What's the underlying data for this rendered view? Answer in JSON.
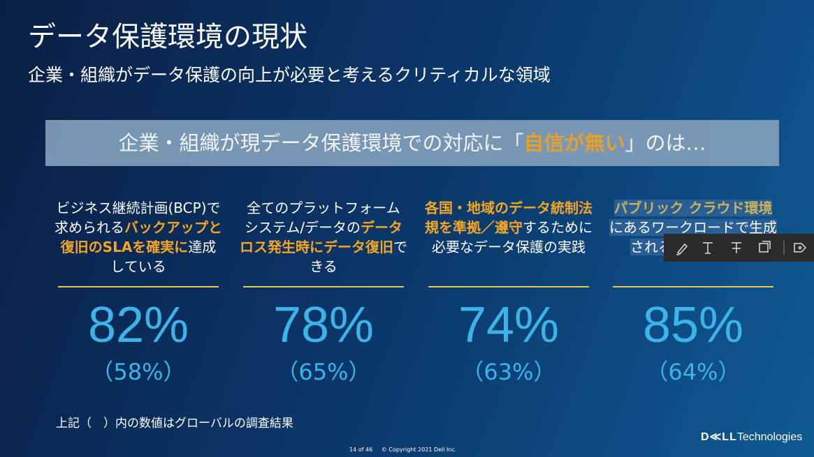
{
  "header": {
    "title": "データ保護環境の現状",
    "subtitle": "企業・組織がデータ保護の向上が必要と考えるクリティカルな領域"
  },
  "banner": {
    "segments": [
      {
        "text": "企業・組織が現データ保護環境での対応に「",
        "highlight": false
      },
      {
        "text": "自信が無い",
        "highlight": true
      },
      {
        "text": "」のは…",
        "highlight": false
      }
    ]
  },
  "columns": [
    {
      "segments": [
        {
          "text": "ビジネス継続計画(BCP)で求められる",
          "highlight": false
        },
        {
          "text": "バックアップと復旧のSLAを確実に",
          "highlight": true
        },
        {
          "text": "達成している",
          "highlight": false
        }
      ],
      "value": "82%",
      "global": "（58%）"
    },
    {
      "segments": [
        {
          "text": "全てのプラットフォーム システム/データの",
          "highlight": false
        },
        {
          "text": "データロス発生時にデータ復旧",
          "highlight": true
        },
        {
          "text": "できる",
          "highlight": false
        }
      ],
      "value": "78%",
      "global": "（65%）"
    },
    {
      "segments": [
        {
          "text": "各国・地域のデータ統制法規を準拠／遵守",
          "highlight": true
        },
        {
          "text": "するために必要なデータ保護の実践",
          "highlight": false
        }
      ],
      "value": "74%",
      "global": "（63%）"
    },
    {
      "segments": [
        {
          "text": "パブリック クラウド環境",
          "highlight": true
        },
        {
          "text": "にあるワークロードで生成されるデータの保護",
          "highlight": false
        }
      ],
      "value": "85%",
      "global": "（64%）",
      "selected": true
    }
  ],
  "note": "上記（　）内の数値はグローバルの調査結果",
  "footer": {
    "page": "14 of 46",
    "copyright": "© Copyright 2021 Dell Inc."
  },
  "logo": {
    "brand": "D≪LL",
    "suffix": "Technologies"
  }
}
